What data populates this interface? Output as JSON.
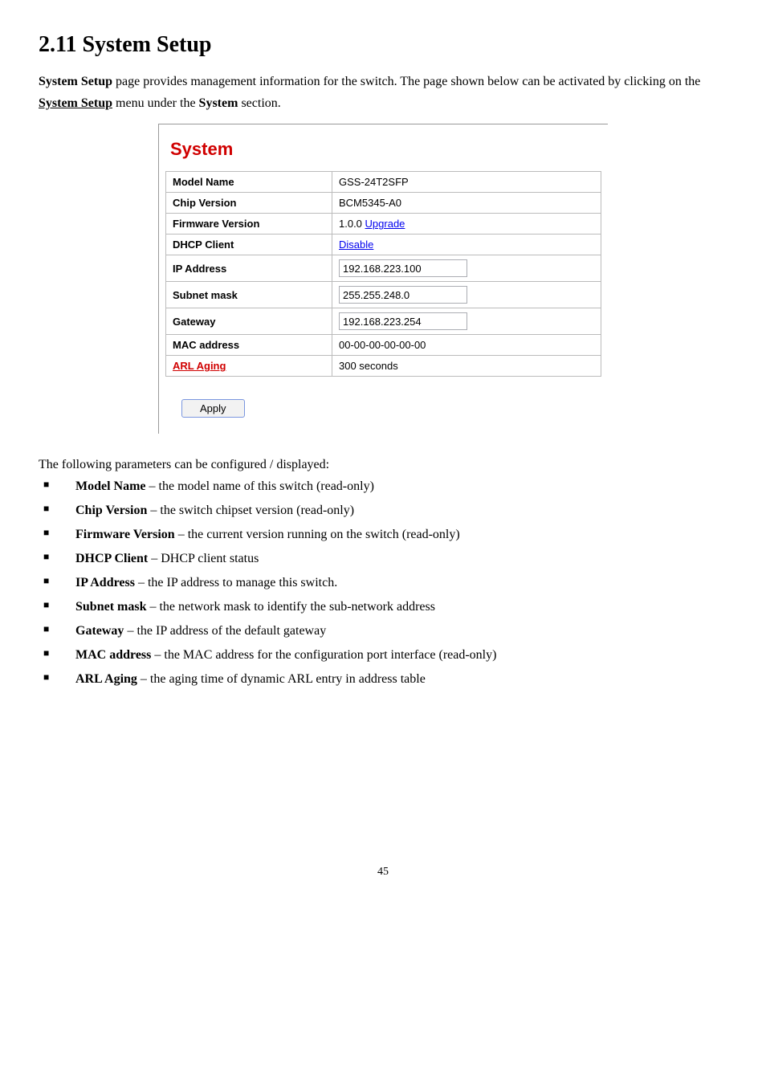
{
  "heading": "2.11  System Setup",
  "intro_parts": {
    "p1": "System Setup",
    "p2": " page provides management information for the switch. The page shown below can be activated by clicking on the ",
    "p3": "System Setup",
    "p4": " menu under the ",
    "p5": "System",
    "p6": " section."
  },
  "screenshot": {
    "title": "System",
    "rows": {
      "model_name": {
        "label": "Model Name",
        "value": "GSS-24T2SFP"
      },
      "chip_version": {
        "label": "Chip Version",
        "value": "BCM5345-A0"
      },
      "firmware_version": {
        "label": "Firmware Version",
        "prefix": "1.0.0   ",
        "link": "Upgrade"
      },
      "dhcp_client": {
        "label": "DHCP Client",
        "link": "Disable"
      },
      "ip_address": {
        "label": "IP Address",
        "value": "192.168.223.100"
      },
      "subnet_mask": {
        "label": "Subnet mask",
        "value": "255.255.248.0"
      },
      "gateway": {
        "label": "Gateway",
        "value": "192.168.223.254"
      },
      "mac_address": {
        "label": "MAC address",
        "value": "00-00-00-00-00-00"
      },
      "arl_aging": {
        "label": "ARL Aging",
        "value": "300 seconds"
      }
    },
    "apply_label": "Apply"
  },
  "params_intro": "The following parameters can be configured / displayed:",
  "params": [
    {
      "term": "Model Name",
      "desc": " – the model name of this switch (read-only)"
    },
    {
      "term": "Chip Version",
      "desc": " – the switch chipset version (read-only)"
    },
    {
      "term": "Firmware Version",
      "desc": " – the current version running on the switch (read-only)"
    },
    {
      "term": "DHCP Client",
      "desc": " – DHCP client status"
    },
    {
      "term": "IP Address",
      "desc": " – the IP address to manage this switch."
    },
    {
      "term": "Subnet mask",
      "desc": " – the network mask to identify the sub-network address"
    },
    {
      "term": "Gateway",
      "desc": " – the IP address of the default gateway"
    },
    {
      "term": "MAC address",
      "desc": " – the MAC address for the configuration port interface (read-only)"
    },
    {
      "term": "ARL Aging",
      "desc": " – the aging time of dynamic ARL entry in address table"
    }
  ],
  "page_number": "45"
}
